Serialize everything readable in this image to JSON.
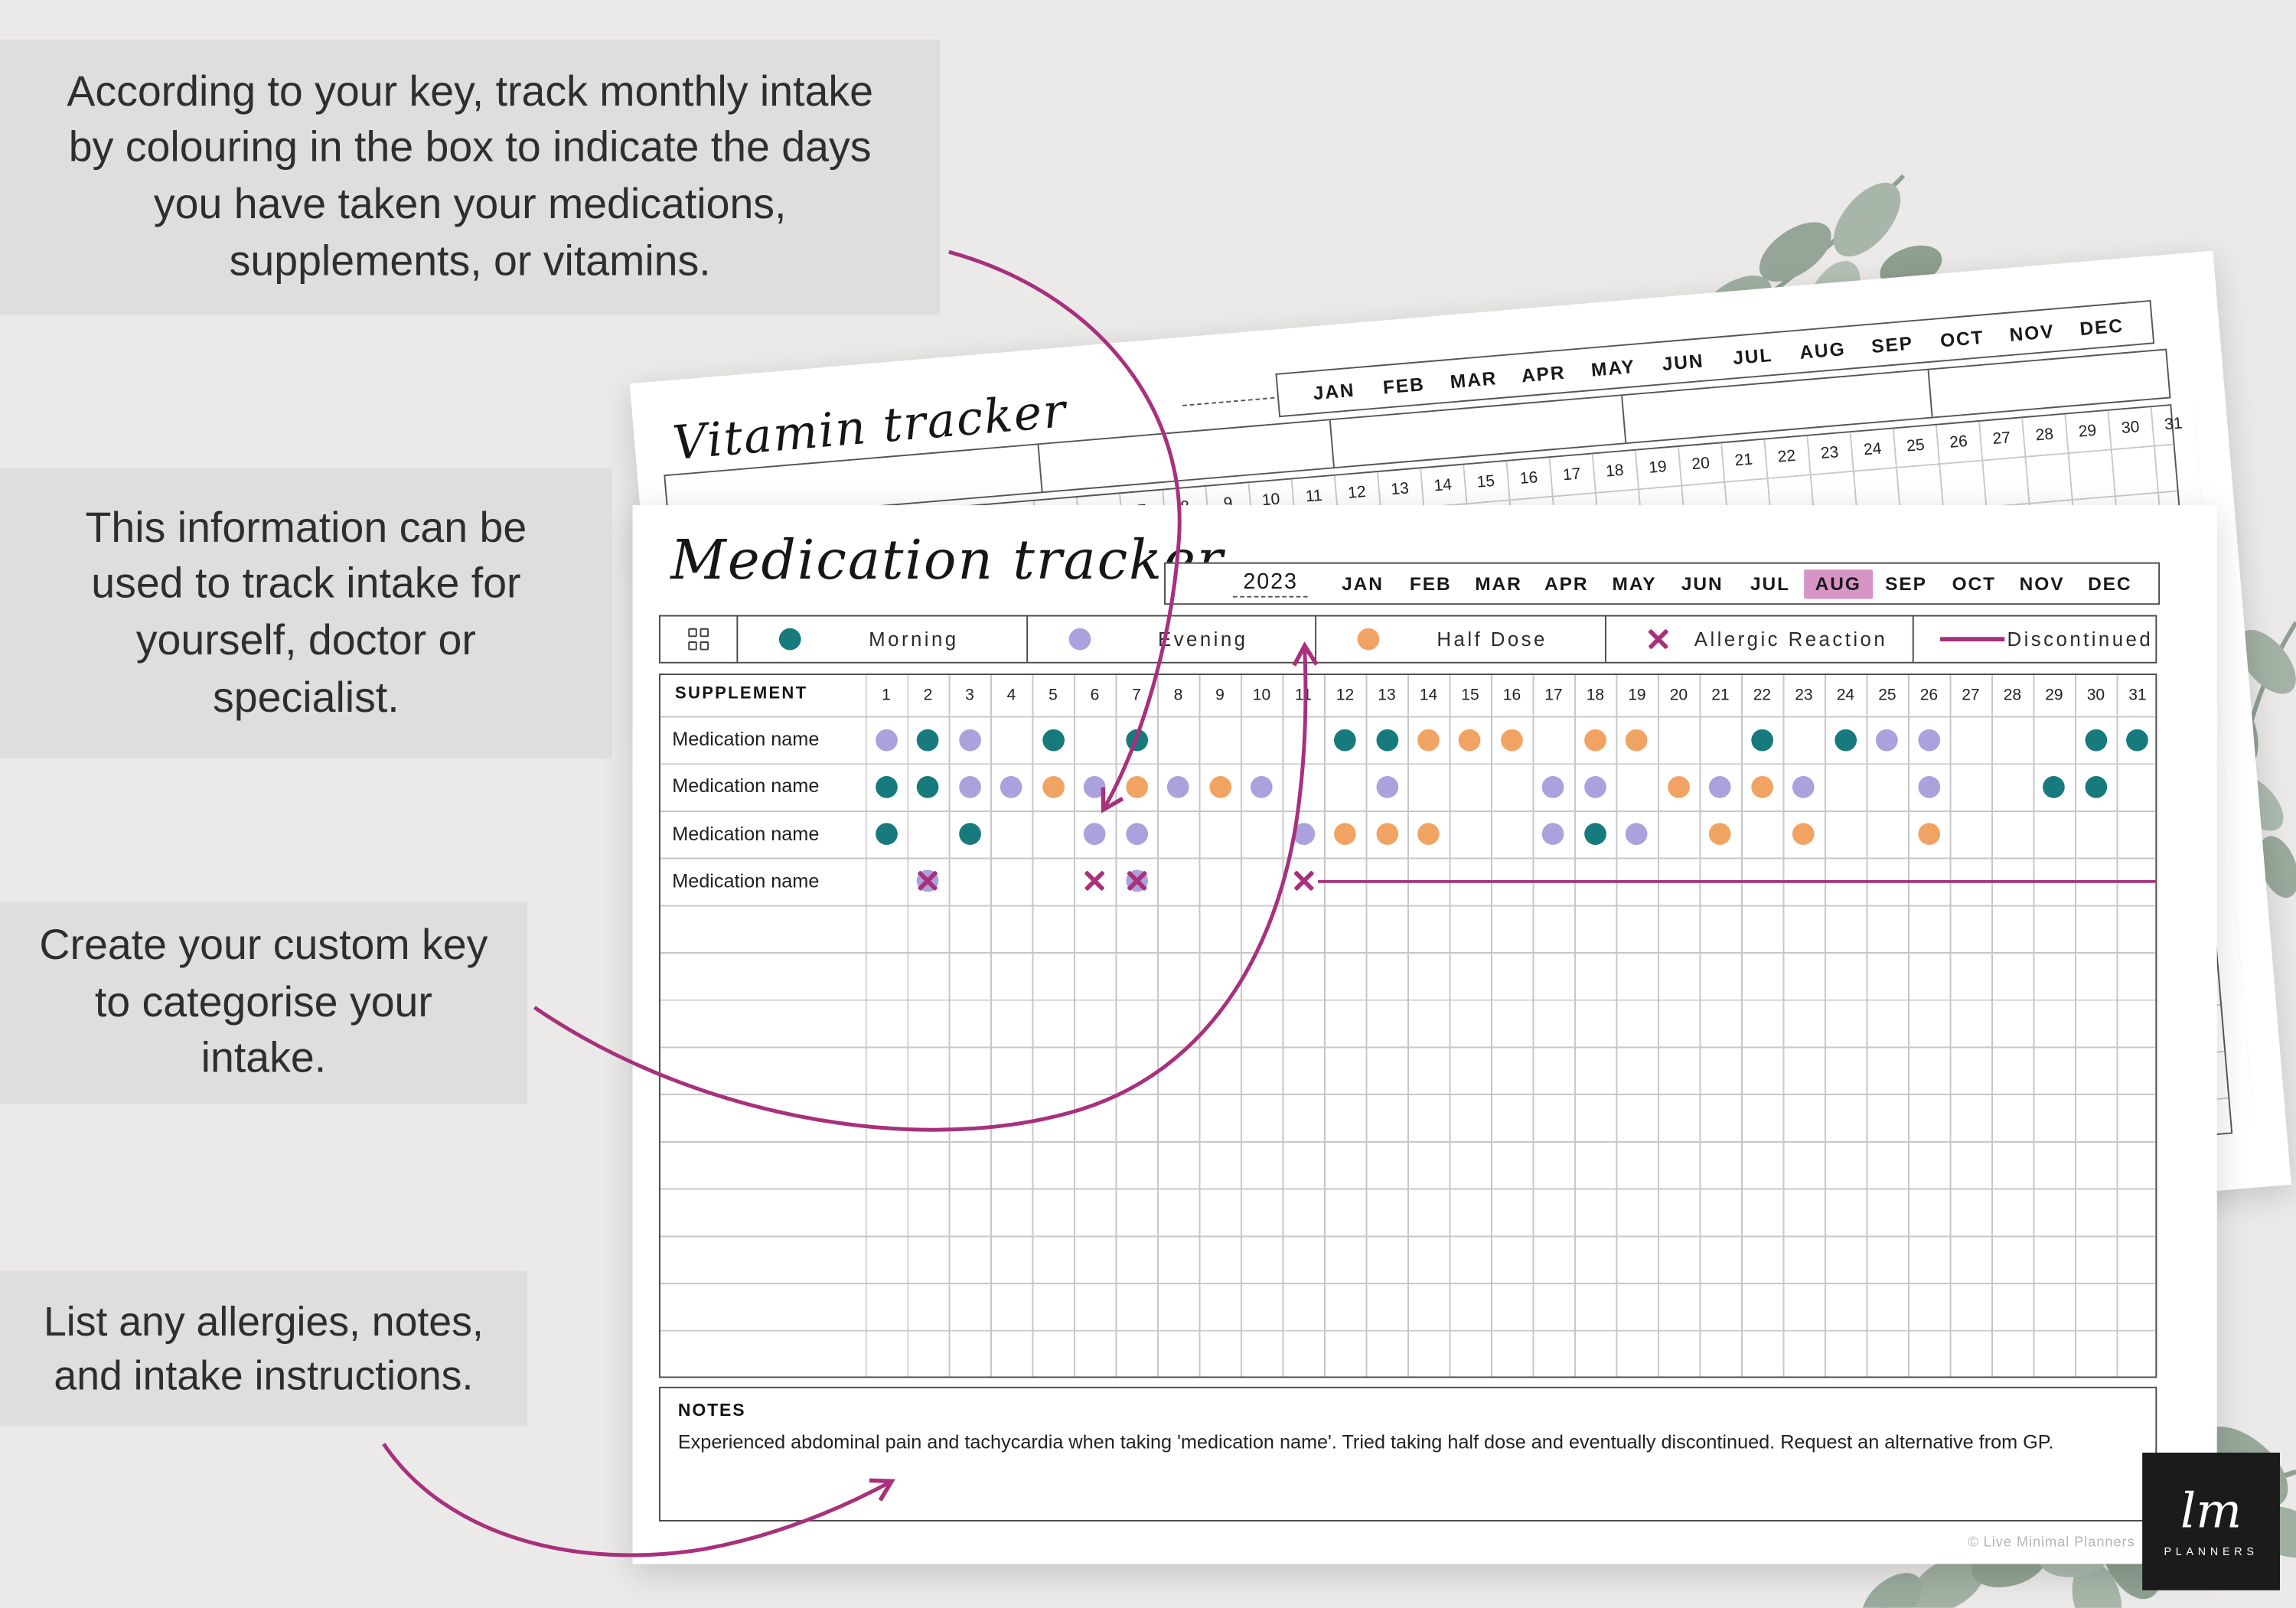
{
  "page": {
    "background": "#ebeae8",
    "callout_bg": "#dededc"
  },
  "callouts": [
    {
      "text": "According to your key, track monthly intake by colouring in the box to indicate the days you have taken your medications, supplements, or vitamins."
    },
    {
      "text": "This information can be used to track intake for yourself, doctor or specialist."
    },
    {
      "text": "Create your custom key to categorise your intake."
    },
    {
      "text": "List any allergies, notes, and intake instructions."
    }
  ],
  "back_sheet": {
    "title": "Vitamin tracker",
    "months": [
      "JAN",
      "FEB",
      "MAR",
      "APR",
      "MAY",
      "JUN",
      "JUL",
      "AUG",
      "SEP",
      "OCT",
      "NOV",
      "DEC"
    ],
    "day_count": 31
  },
  "tracker": {
    "title": "Medication tracker",
    "year": "2023",
    "months": [
      "JAN",
      "FEB",
      "MAR",
      "APR",
      "MAY",
      "JUN",
      "JUL",
      "AUG",
      "SEP",
      "OCT",
      "NOV",
      "DEC"
    ],
    "active_month": "AUG",
    "key": {
      "items": [
        {
          "type": "morning",
          "label": "Morning"
        },
        {
          "type": "evening",
          "label": "Evening"
        },
        {
          "type": "half",
          "label": "Half Dose"
        },
        {
          "type": "allergic",
          "label": "Allergic Reaction"
        },
        {
          "type": "discontinued",
          "label": "Discontinued"
        }
      ]
    },
    "table": {
      "header": "SUPPLEMENT",
      "day_count": 31,
      "empty_row_count": 10,
      "rows": [
        {
          "name": "Medication name",
          "marks": {
            "1": "evening",
            "2": "morning",
            "3": "evening",
            "5": "morning",
            "7": "morning",
            "12": "morning",
            "13": "morning",
            "14": "half",
            "15": "half",
            "16": "half",
            "18": "half",
            "19": "half",
            "22": "morning",
            "24": "morning",
            "25": "evening",
            "26": "evening",
            "30": "morning",
            "31": "morning"
          }
        },
        {
          "name": "Medication name",
          "marks": {
            "1": "morning",
            "2": "morning",
            "3": "evening",
            "4": "evening",
            "5": "half",
            "6": "evening",
            "7": "half",
            "8": "evening",
            "9": "half",
            "10": "evening",
            "13": "evening",
            "17": "evening",
            "18": "evening",
            "20": "half",
            "21": "evening",
            "22": "half",
            "23": "evening",
            "26": "evening",
            "29": "morning",
            "30": "morning"
          }
        },
        {
          "name": "Medication name",
          "marks": {
            "1": "morning",
            "3": "morning",
            "6": "evening",
            "7": "evening",
            "11": "evening",
            "12": "half",
            "13": "half",
            "14": "half",
            "17": "evening",
            "18": "morning",
            "19": "evening",
            "21": "half",
            "23": "half",
            "26": "half"
          }
        },
        {
          "name": "Medication name",
          "marks": {
            "2": "allergic_dot",
            "6": "allergic",
            "7": "allergic_dot",
            "11": "allergic"
          },
          "discontinued_from": 11
        }
      ]
    },
    "notes_label": "NOTES",
    "notes_text": "Experienced abdominal pain and tachycardia when taking 'medication name'. Tried taking half dose and eventually discontinued. Request an alternative from GP."
  },
  "footer": {
    "copyright": "© Live Minimal Planners",
    "logo_script": "lm",
    "logo_text": "PLANNERS"
  },
  "colors": {
    "c_morning": "#177a7d",
    "c_evening": "#aba1dc",
    "c_half": "#f1a364",
    "accent": "#a8307c",
    "aug_bg": "#d795c5"
  }
}
